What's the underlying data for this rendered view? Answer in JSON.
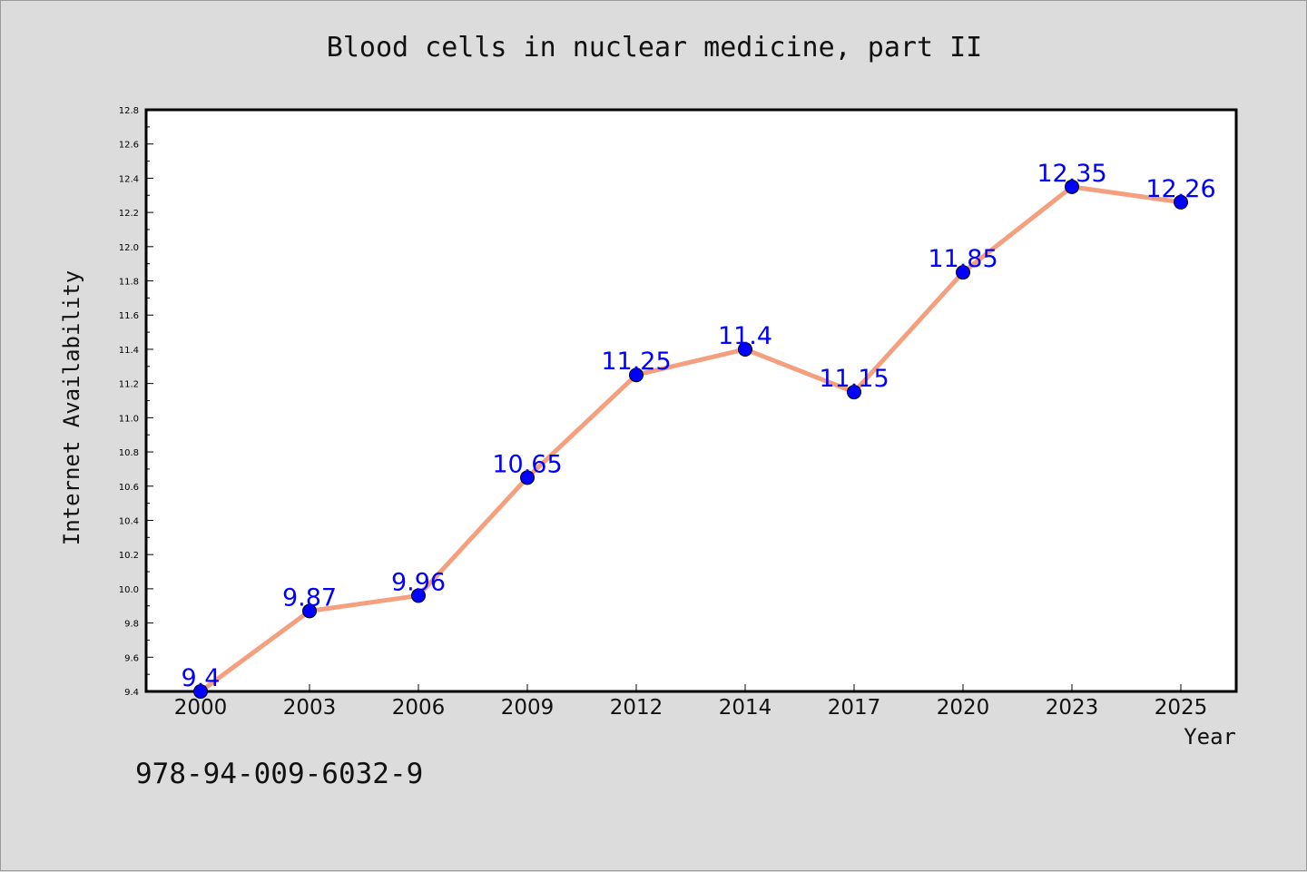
{
  "chart_data": {
    "type": "line",
    "title": "Blood cells in nuclear medicine, part II",
    "xlabel": "Year",
    "ylabel": "Internet Availability",
    "categories": [
      "2000",
      "2003",
      "2006",
      "2009",
      "2012",
      "2014",
      "2017",
      "2020",
      "2023",
      "2025"
    ],
    "series": [
      {
        "values": [
          9.4,
          9.87,
          9.96,
          10.65,
          11.25,
          11.4,
          11.15,
          11.85,
          12.35,
          12.26
        ],
        "value_labels": [
          "9.4",
          "9.87",
          "9.96",
          "10.65",
          "11.25",
          "11.4",
          "11.15",
          "11.85",
          "12.35",
          "12.26"
        ]
      }
    ],
    "ylim": [
      9.4,
      12.8
    ],
    "yticks": [
      "9.4",
      "9.6",
      "9.8",
      "10.0",
      "10.2",
      "10.4",
      "10.6",
      "10.8",
      "11.0",
      "11.2",
      "11.4",
      "11.6",
      "11.8",
      "12.0",
      "12.2",
      "12.4",
      "12.6",
      "12.8"
    ],
    "grid": false,
    "colors": {
      "line": "#f4a07f",
      "marker": "#0000ff",
      "label": "#0000ff",
      "plot_bg": "#ffffff",
      "figure_bg": "#dcdcdc"
    }
  },
  "footer": {
    "code": "978-94-009-6032-9"
  }
}
